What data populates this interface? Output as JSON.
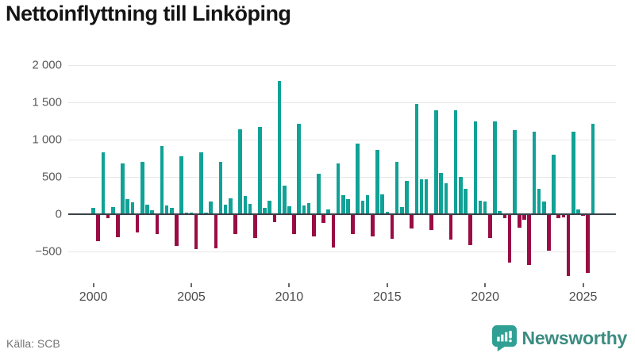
{
  "title": "Nettoinflyttning till Linköping",
  "source": "Källa: SCB",
  "logo": {
    "brand": "Newsworthy",
    "icon": "newsworthy-speech-bubble-chart-icon"
  },
  "colors": {
    "positive": "#10a296",
    "negative": "#990c44",
    "zero_axis": "#3a424a",
    "grid": "#e7e7e7",
    "logo_icon": "#2fa093",
    "logo_text": "#3c8c81"
  },
  "chart_data": {
    "type": "bar",
    "title": "Nettoinflyttning till Linköping",
    "frequency": "quarterly",
    "xlabel": "",
    "ylabel": "",
    "ylim": [
      -880,
      2120
    ],
    "grid": "horizontal",
    "y_ticks": [
      2000,
      1500,
      1000,
      500,
      0,
      -500
    ],
    "y_tick_labels": [
      "2 000",
      "1 500",
      "1 000",
      "500",
      "0",
      "−500"
    ],
    "x_tick_years": [
      2000,
      2005,
      2010,
      2015,
      2020,
      2025
    ],
    "series_name": "Nettoinflyttning",
    "years": [
      {
        "year": 2000,
        "values": [
          80,
          -350,
          830,
          -40
        ]
      },
      {
        "year": 2001,
        "values": [
          100,
          -300,
          680,
          200
        ]
      },
      {
        "year": 2002,
        "values": [
          160,
          -230,
          700,
          125
        ]
      },
      {
        "year": 2003,
        "values": [
          50,
          -250,
          910,
          120
        ]
      },
      {
        "year": 2004,
        "values": [
          80,
          -410,
          770,
          20
        ]
      },
      {
        "year": 2005,
        "values": [
          20,
          -460,
          830,
          20
        ]
      },
      {
        "year": 2006,
        "values": [
          170,
          -450,
          700,
          130
        ]
      },
      {
        "year": 2007,
        "values": [
          210,
          -250,
          1140,
          240
        ]
      },
      {
        "year": 2008,
        "values": [
          135,
          -310,
          1170,
          90
        ]
      },
      {
        "year": 2009,
        "values": [
          180,
          -95,
          1780,
          380
        ]
      },
      {
        "year": 2010,
        "values": [
          110,
          -250,
          1210,
          115
        ]
      },
      {
        "year": 2011,
        "values": [
          150,
          -290,
          540,
          -105
        ]
      },
      {
        "year": 2012,
        "values": [
          60,
          -440,
          680,
          255
        ]
      },
      {
        "year": 2013,
        "values": [
          200,
          -250,
          950,
          180
        ]
      },
      {
        "year": 2014,
        "values": [
          250,
          -290,
          860,
          270
        ]
      },
      {
        "year": 2015,
        "values": [
          30,
          -320,
          700,
          95
        ]
      },
      {
        "year": 2016,
        "values": [
          450,
          -180,
          1480,
          465
        ]
      },
      {
        "year": 2017,
        "values": [
          465,
          -205,
          1390,
          555
        ]
      },
      {
        "year": 2018,
        "values": [
          410,
          -330,
          1390,
          500
        ]
      },
      {
        "year": 2019,
        "values": [
          340,
          -400,
          1240,
          185
        ]
      },
      {
        "year": 2020,
        "values": [
          170,
          -310,
          1240,
          45
        ]
      },
      {
        "year": 2021,
        "values": [
          -45,
          -640,
          1120,
          -175
        ]
      },
      {
        "year": 2022,
        "values": [
          -65,
          -670,
          1100,
          335
        ]
      },
      {
        "year": 2023,
        "values": [
          165,
          -480,
          800,
          -45
        ]
      },
      {
        "year": 2024,
        "values": [
          -35,
          -815,
          1100,
          60
        ]
      },
      {
        "year": 2025,
        "values": [
          -15,
          -780,
          1210
        ]
      }
    ]
  }
}
